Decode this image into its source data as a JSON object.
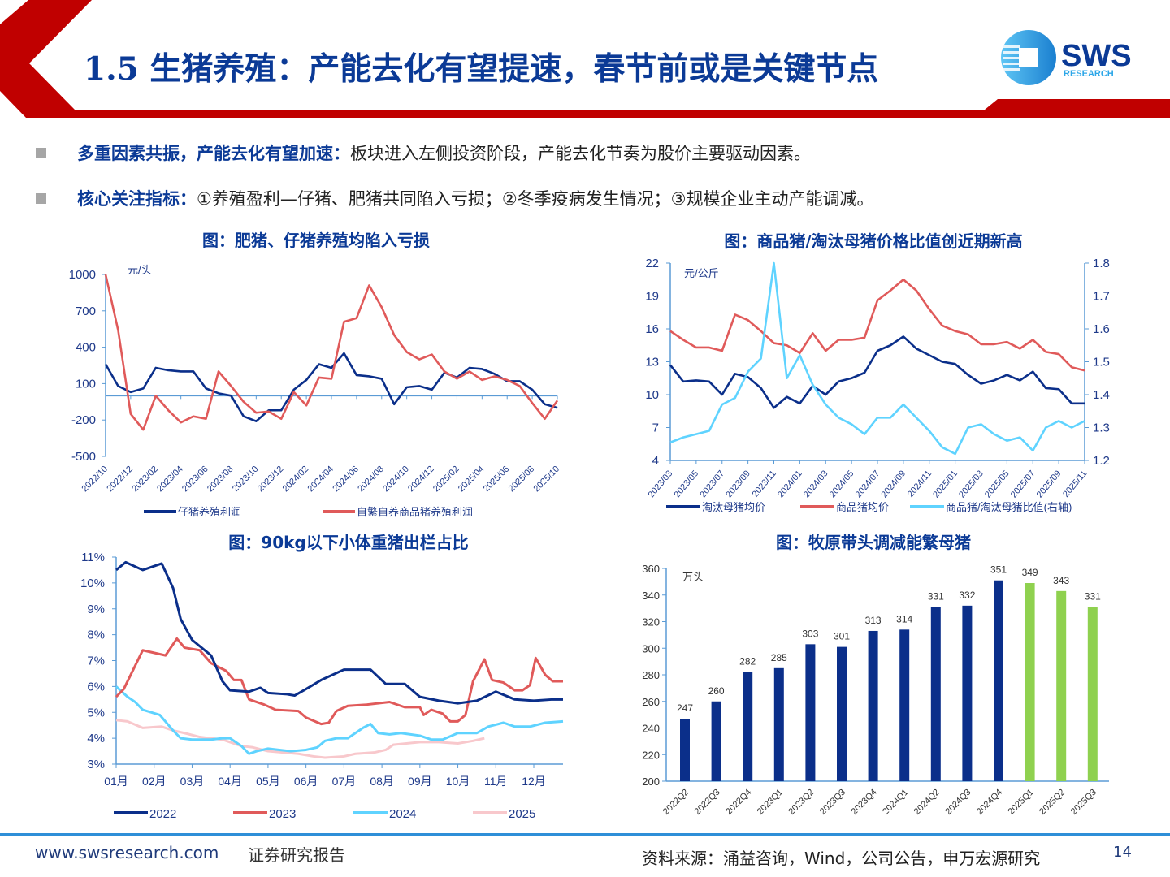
{
  "header": {
    "title": "1.5 生猪养殖：产能去化有望提速，春节前或是关键节点",
    "logo_text": "SWS",
    "logo_subtext": "RESEARCH",
    "brand_colors": {
      "red": "#c00000",
      "blue": "#0b3a96",
      "light_blue": "#2ba6e8"
    }
  },
  "bullets": [
    {
      "bold": "多重因素共振，产能去化有望加速：",
      "text": "板块进入左侧投资阶段，产能去化节奏为股价主要驱动因素。"
    },
    {
      "bold": "核心关注指标：",
      "text": "①养殖盈利—仔猪、肥猪共同陷入亏损；②冬季疫病发生情况；③规模企业主动产能调减。"
    }
  ],
  "chart_data": [
    {
      "type": "line",
      "title": "图：肥猪、仔猪养殖均陷入亏损",
      "unit": "元/头",
      "ylim": [
        -500,
        1000
      ],
      "yticks": [
        "1000",
        "700",
        "400",
        "100",
        "-200",
        "-500"
      ],
      "ytick_values": [
        1000,
        700,
        400,
        100,
        -200,
        -500
      ],
      "reference_line": 0,
      "xticks": [
        "2022/10",
        "2022/12",
        "2023/02",
        "2023/04",
        "2023/06",
        "2023/08",
        "2023/10",
        "2023/12",
        "2024/02",
        "2024/04",
        "2024/06",
        "2024/08",
        "2024/10",
        "2024/12",
        "2025/02",
        "2025/04",
        "2025/06",
        "2025/08",
        "2025/10"
      ],
      "x": [
        "2022/10",
        "2022/11",
        "2022/12",
        "2023/01",
        "2023/02",
        "2023/03",
        "2023/04",
        "2023/05",
        "2023/06",
        "2023/07",
        "2023/08",
        "2023/09",
        "2023/10",
        "2023/11",
        "2023/12",
        "2024/01",
        "2024/02",
        "2024/03",
        "2024/04",
        "2024/05",
        "2024/06",
        "2024/07",
        "2024/08",
        "2024/09",
        "2024/10",
        "2024/11",
        "2024/12",
        "2025/01",
        "2025/02",
        "2025/03",
        "2025/04",
        "2025/05",
        "2025/06",
        "2025/07",
        "2025/08",
        "2025/09",
        "2025/10"
      ],
      "legend_position": "bottom",
      "series": [
        {
          "name": "仔猪养殖利润",
          "color": "#0b2f8a",
          "values": [
            260,
            80,
            30,
            60,
            230,
            210,
            200,
            200,
            60,
            20,
            0,
            -170,
            -210,
            -120,
            -120,
            50,
            130,
            260,
            230,
            350,
            170,
            160,
            140,
            -70,
            70,
            80,
            50,
            190,
            150,
            230,
            220,
            180,
            120,
            120,
            50,
            -70,
            -100
          ]
        },
        {
          "name": "自繁自养商品猪养殖利润",
          "color": "#e05a5a",
          "values": [
            1000,
            540,
            -150,
            -280,
            0,
            -120,
            -220,
            -170,
            -190,
            200,
            80,
            -50,
            -140,
            -130,
            -190,
            30,
            -80,
            150,
            140,
            610,
            640,
            910,
            730,
            500,
            360,
            300,
            340,
            200,
            140,
            200,
            130,
            160,
            130,
            80,
            -60,
            -190,
            -40
          ]
        }
      ]
    },
    {
      "type": "line",
      "title": "图：商品猪/淘汰母猪价格比值创近期新高",
      "unit": "元/公斤",
      "ylim": [
        4,
        22
      ],
      "yticks": [
        "22",
        "19",
        "16",
        "13",
        "10",
        "7",
        "4"
      ],
      "ytick_values": [
        22,
        19,
        16,
        13,
        10,
        7,
        4
      ],
      "y2lim": [
        1.2,
        1.8
      ],
      "y2ticks": [
        "1.8",
        "1.7",
        "1.6",
        "1.5",
        "1.4",
        "1.3",
        "1.2"
      ],
      "y2tick_values": [
        1.8,
        1.7,
        1.6,
        1.5,
        1.4,
        1.3,
        1.2
      ],
      "xticks": [
        "2023/03",
        "2023/05",
        "2023/07",
        "2023/09",
        "2023/11",
        "2024/01",
        "2024/03",
        "2024/05",
        "2024/07",
        "2024/09",
        "2024/11",
        "2025/01",
        "2025/03",
        "2025/05",
        "2025/07",
        "2025/09",
        "2025/11"
      ],
      "x": [
        "2023/03",
        "2023/04",
        "2023/05",
        "2023/06",
        "2023/07",
        "2023/08",
        "2023/09",
        "2023/10",
        "2023/11",
        "2023/12",
        "2024/01",
        "2024/02",
        "2024/03",
        "2024/04",
        "2024/05",
        "2024/06",
        "2024/07",
        "2024/08",
        "2024/09",
        "2024/10",
        "2024/11",
        "2024/12",
        "2025/01",
        "2025/02",
        "2025/03",
        "2025/04",
        "2025/05",
        "2025/06",
        "2025/07",
        "2025/08",
        "2025/09",
        "2025/10",
        "2025/11"
      ],
      "legend_position": "bottom",
      "series": [
        {
          "name": "淘汰母猪均价",
          "color": "#0b2f8a",
          "axis": "left",
          "values": [
            12.7,
            11.2,
            11.3,
            11.2,
            10.0,
            11.9,
            11.6,
            10.6,
            8.8,
            9.8,
            9.2,
            10.8,
            10.0,
            11.2,
            11.5,
            12.0,
            14.0,
            14.5,
            15.3,
            14.2,
            13.6,
            13.0,
            12.8,
            11.8,
            11.0,
            11.3,
            11.8,
            11.3,
            12.1,
            10.6,
            10.5,
            9.2,
            9.2
          ]
        },
        {
          "name": "商品猪均价",
          "color": "#e05a5a",
          "axis": "left",
          "values": [
            15.8,
            15.0,
            14.3,
            14.3,
            14.0,
            17.3,
            16.8,
            15.8,
            14.7,
            14.5,
            13.8,
            15.6,
            14.0,
            15.0,
            15.0,
            15.2,
            18.6,
            19.5,
            20.5,
            19.5,
            17.8,
            16.3,
            15.8,
            15.5,
            14.6,
            14.6,
            14.8,
            14.2,
            15.0,
            13.9,
            13.7,
            12.5,
            12.2
          ]
        },
        {
          "name": "商品猪/淘汰母猪比值(右轴)",
          "color": "#5fd3ff",
          "axis": "right",
          "values": [
            1.255,
            1.27,
            1.28,
            1.29,
            1.37,
            1.39,
            1.47,
            1.51,
            1.8,
            1.45,
            1.52,
            1.43,
            1.37,
            1.33,
            1.31,
            1.28,
            1.33,
            1.33,
            1.37,
            1.33,
            1.29,
            1.24,
            1.22,
            1.3,
            1.31,
            1.28,
            1.26,
            1.27,
            1.23,
            1.3,
            1.32,
            1.3,
            1.32
          ]
        }
      ]
    },
    {
      "type": "line",
      "title": "图：90kg以下小体重猪出栏占比",
      "ylim": [
        3,
        11
      ],
      "yticks": [
        "11%",
        "10%",
        "9%",
        "8%",
        "7%",
        "6%",
        "5%",
        "4%",
        "3%"
      ],
      "ytick_values": [
        11,
        10,
        9,
        8,
        7,
        6,
        5,
        4,
        3
      ],
      "xticks": [
        "01月",
        "02月",
        "03月",
        "04月",
        "05月",
        "06月",
        "07月",
        "08月",
        "09月",
        "10月",
        "11月",
        "12月"
      ],
      "xtick_values": [
        1,
        2,
        3,
        4,
        5,
        6,
        7,
        8,
        9,
        10,
        11,
        12
      ],
      "xlim": [
        1,
        12.77
      ],
      "legend_position": "bottom",
      "series": [
        {
          "name": "2022",
          "color": "#0b2f8a",
          "x": [
            1.0,
            1.25,
            1.7,
            2.2,
            2.5,
            2.7,
            3.0,
            3.5,
            3.8,
            4.0,
            4.5,
            4.8,
            5.0,
            5.5,
            5.7,
            6.0,
            6.4,
            7.0,
            7.7,
            8.1,
            8.6,
            9.0,
            9.5,
            10.0,
            10.5,
            11.0,
            11.5,
            12.0,
            12.5,
            12.77
          ],
          "values": [
            10.5,
            10.8,
            10.5,
            10.75,
            9.8,
            8.6,
            7.8,
            7.2,
            6.2,
            5.85,
            5.8,
            5.95,
            5.75,
            5.7,
            5.65,
            5.9,
            6.25,
            6.65,
            6.65,
            6.1,
            6.1,
            5.6,
            5.45,
            5.35,
            5.45,
            5.8,
            5.5,
            5.45,
            5.5,
            5.5
          ]
        },
        {
          "name": "2023",
          "color": "#e05a5a",
          "x": [
            1.0,
            1.2,
            1.7,
            2.3,
            2.6,
            2.8,
            3.2,
            3.5,
            3.9,
            4.1,
            4.3,
            4.5,
            4.9,
            5.2,
            5.8,
            6.0,
            6.4,
            6.6,
            6.8,
            7.1,
            7.6,
            8.2,
            8.6,
            9.0,
            9.1,
            9.3,
            9.6,
            9.8,
            10.0,
            10.2,
            10.4,
            10.7,
            10.9,
            11.2,
            11.5,
            11.7,
            11.9,
            12.05,
            12.3,
            12.5,
            12.77
          ],
          "values": [
            5.6,
            5.9,
            7.4,
            7.2,
            7.85,
            7.5,
            7.4,
            6.9,
            6.6,
            6.25,
            6.25,
            5.5,
            5.3,
            5.1,
            5.05,
            4.8,
            4.55,
            4.6,
            5.05,
            5.25,
            5.3,
            5.4,
            5.2,
            5.2,
            4.9,
            5.1,
            4.95,
            4.65,
            4.65,
            4.9,
            6.2,
            7.05,
            6.25,
            6.15,
            5.85,
            5.85,
            6.05,
            7.1,
            6.45,
            6.2,
            6.2
          ]
        },
        {
          "name": "2024",
          "color": "#5fd3ff",
          "x": [
            1.0,
            1.3,
            1.5,
            1.7,
            2.15,
            2.5,
            2.7,
            3.0,
            3.5,
            3.8,
            4.0,
            4.3,
            4.5,
            4.7,
            5.0,
            5.3,
            5.6,
            6.0,
            6.3,
            6.5,
            6.8,
            7.1,
            7.5,
            7.7,
            7.9,
            8.2,
            8.5,
            9.0,
            9.3,
            9.6,
            10.0,
            10.5,
            10.8,
            11.2,
            11.5,
            11.9,
            12.3,
            12.77
          ],
          "values": [
            6.0,
            5.6,
            5.4,
            5.1,
            4.9,
            4.3,
            4.0,
            3.95,
            3.95,
            4.0,
            4.0,
            3.7,
            3.4,
            3.5,
            3.6,
            3.55,
            3.5,
            3.55,
            3.65,
            3.9,
            4.0,
            4.0,
            4.4,
            4.55,
            4.2,
            4.15,
            4.2,
            4.1,
            3.95,
            3.95,
            4.2,
            4.2,
            4.45,
            4.6,
            4.45,
            4.45,
            4.6,
            4.65
          ]
        },
        {
          "name": "2025",
          "color": "#f8c8cc",
          "x": [
            1.0,
            1.3,
            1.7,
            2.2,
            2.5,
            2.8,
            3.2,
            3.8,
            4.0,
            4.3,
            4.6,
            5.0,
            5.4,
            5.8,
            6.2,
            6.5,
            7.0,
            7.3,
            7.8,
            8.1,
            8.3,
            9.0,
            9.5,
            10.0,
            10.4,
            10.7
          ],
          "values": [
            4.7,
            4.65,
            4.4,
            4.45,
            4.3,
            4.2,
            4.05,
            3.95,
            3.85,
            3.7,
            3.65,
            3.5,
            3.45,
            3.4,
            3.3,
            3.25,
            3.3,
            3.4,
            3.45,
            3.55,
            3.75,
            3.85,
            3.85,
            3.8,
            3.9,
            4.0
          ]
        }
      ]
    },
    {
      "type": "bar",
      "title": "图：牧原带头调减能繁母猪",
      "unit": "万头",
      "ylim": [
        200,
        360
      ],
      "yticks": [
        "360",
        "340",
        "320",
        "300",
        "280",
        "260",
        "240",
        "220",
        "200"
      ],
      "ytick_values": [
        360,
        340,
        320,
        300,
        280,
        260,
        240,
        220,
        200
      ],
      "categories": [
        "2022Q2",
        "2022Q3",
        "2022Q4",
        "2023Q1",
        "2023Q2",
        "2023Q3",
        "2023Q4",
        "2024Q1",
        "2024Q2",
        "2024Q3",
        "2024Q4",
        "2025Q1",
        "2025Q2",
        "2025Q3"
      ],
      "values": [
        247,
        260,
        282,
        285,
        303,
        301,
        313,
        314,
        331,
        332,
        351,
        349,
        343,
        331
      ],
      "data_labels": [
        "247",
        "260",
        "282",
        "285",
        "303",
        "301",
        "313",
        "314",
        "331",
        "332",
        "351",
        "349",
        "343",
        "331"
      ],
      "colors": {
        "historical": "#0b2f8a",
        "recent": "#8fd14f"
      },
      "recent_from": "2025Q1"
    }
  ],
  "footer": {
    "website": "www.swsresearch.com",
    "label": "证券研究报告",
    "source": "资料来源：涌益咨询，Wind，公司公告，申万宏源研究",
    "page_number": "14"
  }
}
